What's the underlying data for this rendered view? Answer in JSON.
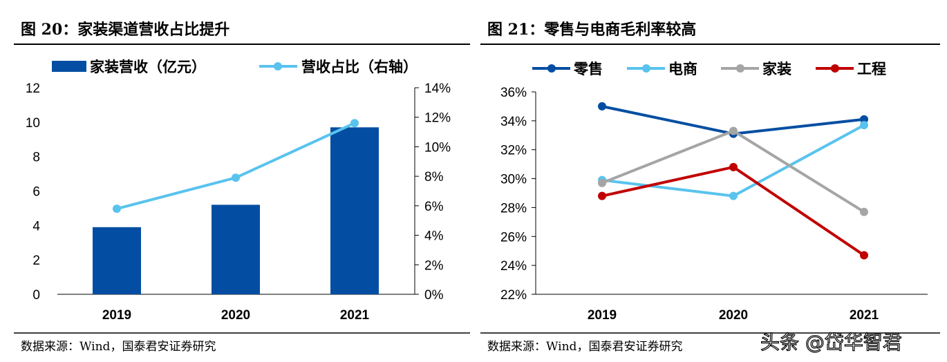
{
  "chart_data": [
    {
      "type": "bar+line",
      "title": "图 20：家装渠道营收占比提升",
      "categories": [
        "2019",
        "2020",
        "2021"
      ],
      "series": [
        {
          "name": "家装营收（亿元）",
          "type": "bar",
          "axis": "left",
          "color": "#034EA2",
          "values": [
            3.9,
            5.2,
            9.7
          ]
        },
        {
          "name": "营收占比（右轴）",
          "type": "line",
          "axis": "right",
          "color": "#59C3EE",
          "values": [
            5.8,
            7.9,
            11.6
          ]
        }
      ],
      "ylim": [
        0,
        12
      ],
      "yticks": [
        "0",
        "2",
        "4",
        "6",
        "8",
        "10",
        "12"
      ],
      "y2lim": [
        0,
        14
      ],
      "y2ticks": [
        "0%",
        "2%",
        "4%",
        "6%",
        "8%",
        "10%",
        "12%",
        "14%"
      ],
      "legend": "top",
      "grid": false,
      "source": "数据来源：Wind，国泰君安证券研究"
    },
    {
      "type": "line",
      "title": "图 21：零售与电商毛利率较高",
      "categories": [
        "2019",
        "2020",
        "2021"
      ],
      "series": [
        {
          "name": "零售",
          "color": "#034EA2",
          "values": [
            35.0,
            33.1,
            34.1
          ]
        },
        {
          "name": "电商",
          "color": "#59C3EE",
          "values": [
            29.9,
            28.8,
            33.7
          ]
        },
        {
          "name": "家装",
          "color": "#A5A5A5",
          "values": [
            29.7,
            33.3,
            27.7
          ]
        },
        {
          "name": "工程",
          "color": "#C00000",
          "values": [
            28.8,
            30.8,
            24.7
          ]
        }
      ],
      "ylim": [
        22,
        36
      ],
      "yticks": [
        "22%",
        "24%",
        "26%",
        "28%",
        "30%",
        "32%",
        "34%",
        "36%"
      ],
      "legend": "top",
      "grid": false,
      "source": "数据来源：Wind，国泰君安证券研究"
    }
  ],
  "watermark": "头条 @岱华智君"
}
